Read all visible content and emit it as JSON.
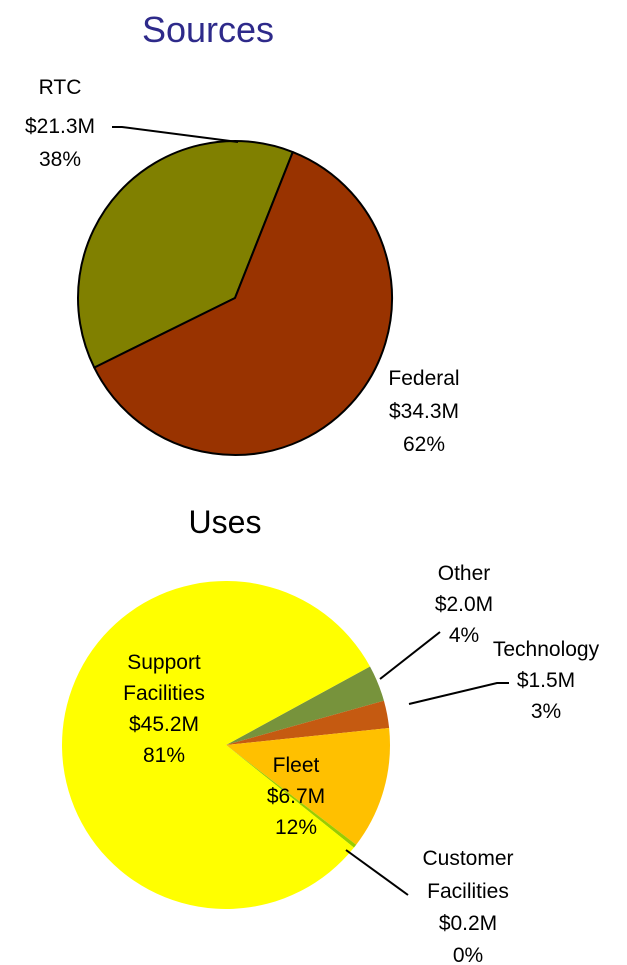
{
  "chart_data": [
    {
      "type": "pie",
      "title": "Sources",
      "title_color": "#2e2a8a",
      "slices": [
        {
          "label": "RTC",
          "amount": "$21.3M",
          "percent_label": "38%",
          "value": 21.3,
          "color": "#808000"
        },
        {
          "label": "Federal",
          "amount": "$34.3M",
          "percent_label": "62%",
          "value": 34.3,
          "color": "#993300"
        }
      ]
    },
    {
      "type": "pie",
      "title": "Uses",
      "slices": [
        {
          "label": "Other",
          "amount": "$2.0M",
          "percent_label": "4%",
          "value": 2.0,
          "color": "#77933c"
        },
        {
          "label": "Technology",
          "amount": "$1.5M",
          "percent_label": "3%",
          "value": 1.5,
          "color": "#c55a11"
        },
        {
          "label": "Fleet",
          "amount": "$6.7M",
          "percent_label": "12%",
          "value": 6.7,
          "color": "#ffc000"
        },
        {
          "label": "Customer Facilities",
          "label_lines": [
            "Customer",
            "Facilities"
          ],
          "amount": "$0.2M",
          "percent_label": "0%",
          "value": 0.2,
          "color": "#99cc00"
        },
        {
          "label": "Support Facilities",
          "label_lines": [
            "Support",
            "Facilities"
          ],
          "amount": "$45.2M",
          "percent_label": "81%",
          "value": 45.2,
          "color": "#ffff00"
        }
      ]
    }
  ]
}
